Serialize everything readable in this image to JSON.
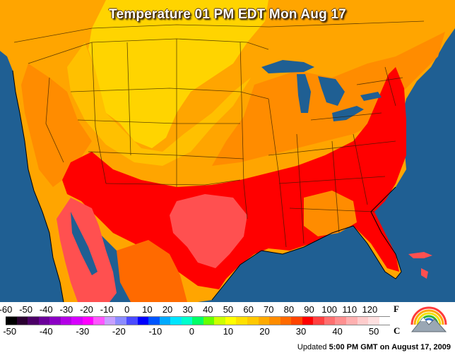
{
  "title": "Temperature 01 PM EDT Mon Aug 17",
  "legend": {
    "fahrenheit_unit": "F",
    "celsius_unit": "C",
    "fahrenheit_ticks": [
      "-60",
      "-50",
      "-40",
      "-30",
      "-20",
      "-10",
      "0",
      "10",
      "20",
      "30",
      "40",
      "50",
      "60",
      "70",
      "80",
      "90",
      "100",
      "110",
      "120"
    ],
    "celsius_ticks": [
      "-50",
      "-40",
      "-30",
      "-20",
      "-10",
      "0",
      "10",
      "20",
      "30",
      "40",
      "50"
    ],
    "fahrenheit_range": [
      -60,
      130
    ],
    "colors": [
      "#000000",
      "#2a0030",
      "#4b0066",
      "#6a0099",
      "#8b00c4",
      "#b300e6",
      "#d600ff",
      "#ff00ff",
      "#ff55ff",
      "#c8a0ff",
      "#8c8cff",
      "#4b4bff",
      "#0000ff",
      "#0055ff",
      "#00aaff",
      "#00e5ff",
      "#00ffcc",
      "#00ff66",
      "#66ff00",
      "#ccff00",
      "#ffff00",
      "#ffe000",
      "#ffc800",
      "#ffaa00",
      "#ff8c00",
      "#ff6a00",
      "#ff4400",
      "#ff0000",
      "#ff4040",
      "#ff7070",
      "#ff9090",
      "#ffb0b0",
      "#ffcccc",
      "#ffe0e0",
      "#ffffff"
    ]
  },
  "updated": {
    "prefix": "Updated",
    "time": "5:00 PM GMT",
    "middle": "on",
    "date": "August 17, 2009"
  },
  "map": {
    "ocean_color": "#1f5f93",
    "land_base_color": "#ffa500",
    "zones": [
      {
        "name": "cool-north-yellow",
        "color": "#ffd400"
      },
      {
        "name": "mid-orange",
        "color": "#ff8c00"
      },
      {
        "name": "hot-red",
        "color": "#ff0000"
      },
      {
        "name": "hottest-salmon",
        "color": "#ff5050"
      },
      {
        "name": "mexico-orange",
        "color": "#ff6a00"
      }
    ]
  }
}
